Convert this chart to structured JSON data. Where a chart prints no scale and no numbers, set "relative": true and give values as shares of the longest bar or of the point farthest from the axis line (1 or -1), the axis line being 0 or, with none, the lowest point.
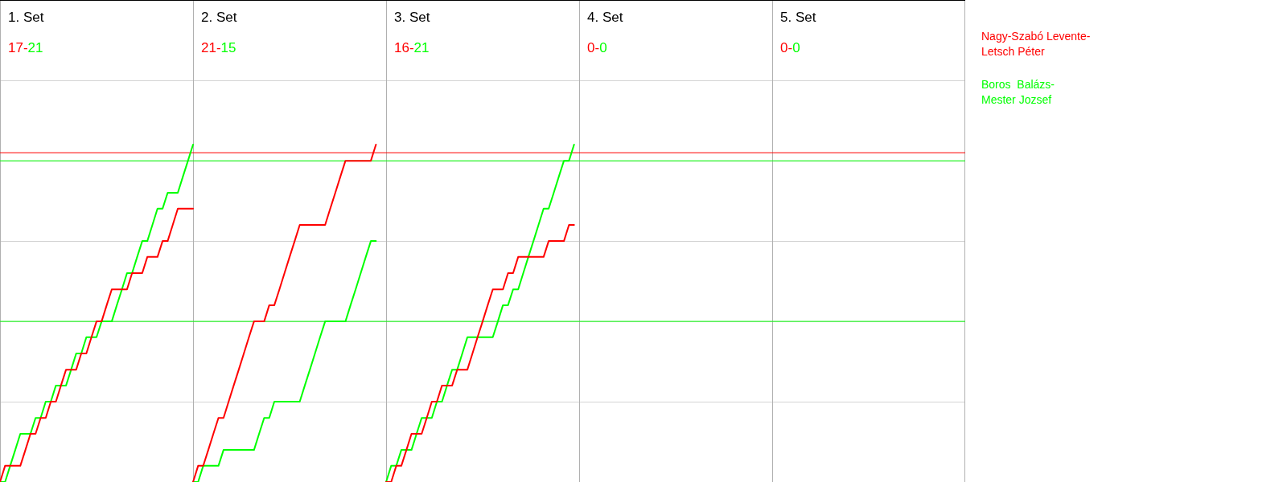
{
  "chart_data": {
    "type": "line",
    "annotations": [
      "1. Set",
      "17-",
      "21",
      "2. Set",
      "21-",
      "15",
      "3. Set",
      "16-",
      "21",
      "4. Set",
      "0-",
      "0",
      "5. Set",
      "0-",
      "0"
    ],
    "relative": true,
    "grid": true,
    "marker": "none",
    "legend": "right",
    "categories": [
      null,
      null,
      null,
      null,
      null,
      null,
      null,
      null,
      null,
      null,
      null,
      null,
      null,
      null,
      null,
      null,
      null,
      null,
      null,
      null,
      null,
      null,
      null,
      null,
      null,
      null,
      null,
      null,
      null,
      null,
      null,
      null,
      null,
      null,
      null,
      null,
      null,
      null,
      null,
      null,
      null,
      null,
      null,
      null,
      null,
      null,
      null,
      null,
      null,
      null,
      null,
      null,
      null,
      null,
      null,
      null,
      null,
      null,
      null,
      null,
      null,
      null,
      null,
      null,
      null,
      null,
      null,
      null,
      null,
      null,
      null,
      null,
      null,
      null,
      null,
      null,
      null,
      null,
      null,
      null,
      null,
      null,
      null,
      null,
      null,
      null,
      null,
      null,
      null,
      null,
      null,
      null,
      null,
      null,
      null,
      null,
      null,
      null,
      null,
      null,
      null,
      null,
      null,
      null,
      null,
      null,
      null,
      null,
      null,
      null,
      null,
      null,
      null,
      null,
      null,
      null,
      null,
      null,
      null,
      null,
      null,
      null,
      null,
      null,
      null,
      null,
      null,
      null,
      null,
      null,
      null,
      null,
      null,
      null,
      null,
      null,
      null,
      null,
      null,
      null,
      null,
      null,
      null,
      null,
      null,
      null,
      null,
      null,
      null,
      null,
      null,
      null,
      null,
      null,
      null,
      null,
      null,
      null,
      null,
      null,
      null,
      null,
      null,
      null,
      null,
      null,
      null,
      null,
      null,
      null,
      null,
      null,
      null,
      null,
      null,
      null,
      null,
      null,
      null,
      null,
      null,
      null,
      null,
      null,
      null,
      null,
      null,
      null,
      null,
      null,
      null
    ],
    "series": [
      {
        "name": "Nagy-Szabó Levente-\nLetsch Péter",
        "color": "#ff0000",
        "values": [
          0,
          0.048,
          0.048,
          0.048,
          0.048,
          0.095,
          0.143,
          0.143,
          0.19,
          0.19,
          0.238,
          0.238,
          0.286,
          0.333,
          0.333,
          0.333,
          0.381,
          0.381,
          0.429,
          0.476,
          0.476,
          0.524,
          0.571,
          0.571,
          0.571,
          0.571,
          0.619,
          0.619,
          0.619,
          0.667,
          0.667,
          0.667,
          0.714,
          0.714,
          0.762,
          0.81,
          0.81,
          0.81,
          0.81,
          null,
          null,
          null,
          null,
          null,
          null,
          null,
          null,
          null,
          null,
          null,
          null,
          null,
          null,
          null,
          null,
          null,
          null,
          null,
          null,
          null,
          null,
          null,
          null,
          null,
          null,
          null,
          null,
          null,
          null,
          null,
          null,
          null,
          null,
          null,
          null,
          null,
          null,
          null,
          null,
          null,
          null,
          null,
          null,
          null,
          null,
          null,
          null,
          null,
          null,
          null,
          null,
          null,
          null,
          null,
          null,
          null,
          null,
          null,
          null,
          null,
          null,
          null,
          null,
          null,
          null,
          null,
          null,
          null,
          null,
          null,
          null,
          null,
          null,
          null,
          null,
          null,
          null,
          null,
          null,
          null,
          null,
          null,
          null,
          null,
          null,
          null,
          null,
          null,
          null,
          null,
          null,
          null,
          null,
          null,
          null,
          null,
          null,
          null,
          null,
          null,
          null,
          null,
          null,
          null,
          null,
          null,
          null,
          null,
          null,
          null,
          null,
          null,
          null,
          null,
          null,
          null,
          null,
          null,
          null,
          null,
          null,
          null,
          null,
          null,
          null,
          null,
          null,
          null,
          null,
          null,
          null,
          null,
          null,
          null,
          null,
          null,
          null,
          null,
          null,
          null,
          null,
          null,
          null,
          null,
          null,
          null,
          null,
          null,
          null,
          null,
          null
        ]
      },
      {
        "name": "Boros  Balázs-\nMester Jozsef",
        "color": "#00ff00",
        "values": [
          0,
          0,
          0.048,
          0.095,
          0.143,
          0.143,
          0.143,
          0.19,
          0.19,
          0.238,
          0.238,
          0.286,
          0.286,
          0.286,
          0.333,
          0.381,
          0.381,
          0.429,
          0.429,
          0.429,
          0.476,
          0.476,
          0.476,
          0.524,
          0.571,
          0.619,
          0.619,
          0.667,
          0.714,
          0.714,
          0.762,
          0.81,
          0.81,
          0.857,
          0.857,
          0.857,
          0.905,
          0.952,
          1,
          null,
          null,
          null,
          null,
          null,
          null,
          null,
          null,
          null,
          null,
          null,
          null,
          null,
          null,
          null,
          null,
          null,
          null,
          null,
          null,
          null,
          null,
          null,
          null,
          null,
          null,
          null,
          null,
          null,
          null,
          null,
          null,
          null,
          null,
          null,
          null,
          null,
          null,
          null,
          null,
          null,
          null,
          null,
          null,
          null,
          null,
          null,
          null,
          null,
          null,
          null,
          null,
          null,
          null,
          null,
          null,
          null,
          null,
          null,
          null,
          null,
          null,
          null,
          null,
          null,
          null,
          null,
          null,
          null,
          null,
          null,
          null,
          null,
          null,
          null,
          null,
          null,
          null,
          null,
          null,
          null,
          null,
          null,
          null,
          null,
          null,
          null,
          null,
          null,
          null,
          null,
          null,
          null,
          null,
          null,
          null,
          null,
          null,
          null,
          null,
          null,
          null,
          null,
          null,
          null,
          null,
          null,
          null,
          null,
          null,
          null,
          null,
          null,
          null,
          null,
          null,
          null,
          null,
          null,
          null,
          null,
          null,
          null,
          null,
          null,
          null,
          null,
          null,
          null,
          null,
          null,
          null,
          null,
          null,
          null,
          null,
          null,
          null,
          null,
          null,
          null,
          null,
          null,
          null,
          null,
          null,
          null,
          null,
          null,
          null,
          null,
          null
        ]
      },
      {
        "color": "#ff0000",
        "values": [
          null,
          null,
          null,
          null,
          null,
          null,
          null,
          null,
          null,
          null,
          null,
          null,
          null,
          null,
          null,
          null,
          null,
          null,
          null,
          null,
          null,
          null,
          null,
          null,
          null,
          null,
          null,
          null,
          null,
          null,
          null,
          null,
          null,
          null,
          null,
          null,
          null,
          null,
          0,
          0.048,
          0.048,
          0.095,
          0.143,
          0.19,
          0.19,
          0.238,
          0.286,
          0.333,
          0.381,
          0.429,
          0.476,
          0.476,
          0.476,
          0.524,
          0.524,
          0.571,
          0.619,
          0.667,
          0.714,
          0.762,
          0.762,
          0.762,
          0.762,
          0.762,
          0.762,
          0.81,
          0.857,
          0.905,
          0.952,
          0.952,
          0.952,
          0.952,
          0.952,
          0.952,
          1,
          null,
          null,
          null,
          null,
          null,
          null,
          null,
          null,
          null,
          null,
          null,
          null,
          null,
          null,
          null,
          null,
          null,
          null,
          null,
          null,
          null,
          null,
          null,
          null,
          null,
          null,
          null,
          null,
          null,
          null,
          null,
          null,
          null,
          null,
          null,
          null,
          null,
          null,
          null,
          null,
          null,
          null,
          null,
          null,
          null,
          null,
          null,
          null,
          null,
          null,
          null,
          null,
          null,
          null,
          null,
          null,
          null,
          null,
          null,
          null,
          null,
          null,
          null,
          null,
          null,
          null,
          null,
          null,
          null,
          null,
          null,
          null,
          null,
          null,
          null,
          null,
          null,
          null,
          null,
          null,
          null,
          null,
          null,
          null,
          null,
          null,
          null,
          null,
          null,
          null,
          null,
          null,
          null,
          null,
          null,
          null,
          null,
          null,
          null,
          null,
          null,
          null,
          null,
          null,
          null,
          null,
          null,
          null,
          null,
          null,
          null,
          null,
          null,
          null,
          null,
          null
        ]
      },
      {
        "color": "#00ff00",
        "values": [
          null,
          null,
          null,
          null,
          null,
          null,
          null,
          null,
          null,
          null,
          null,
          null,
          null,
          null,
          null,
          null,
          null,
          null,
          null,
          null,
          null,
          null,
          null,
          null,
          null,
          null,
          null,
          null,
          null,
          null,
          null,
          null,
          null,
          null,
          null,
          null,
          null,
          null,
          0,
          0,
          0.048,
          0.048,
          0.048,
          0.048,
          0.095,
          0.095,
          0.095,
          0.095,
          0.095,
          0.095,
          0.095,
          0.143,
          0.19,
          0.19,
          0.238,
          0.238,
          0.238,
          0.238,
          0.238,
          0.238,
          0.286,
          0.333,
          0.381,
          0.429,
          0.476,
          0.476,
          0.476,
          0.476,
          0.476,
          0.524,
          0.571,
          0.619,
          0.667,
          0.714,
          0.714,
          null,
          null,
          null,
          null,
          null,
          null,
          null,
          null,
          null,
          null,
          null,
          null,
          null,
          null,
          null,
          null,
          null,
          null,
          null,
          null,
          null,
          null,
          null,
          null,
          null,
          null,
          null,
          null,
          null,
          null,
          null,
          null,
          null,
          null,
          null,
          null,
          null,
          null,
          null,
          null,
          null,
          null,
          null,
          null,
          null,
          null,
          null,
          null,
          null,
          null,
          null,
          null,
          null,
          null,
          null,
          null,
          null,
          null,
          null,
          null,
          null,
          null,
          null,
          null,
          null,
          null,
          null,
          null,
          null,
          null,
          null,
          null,
          null,
          null,
          null,
          null,
          null,
          null,
          null,
          null,
          null,
          null,
          null,
          null,
          null,
          null,
          null,
          null,
          null,
          null,
          null,
          null,
          null,
          null,
          null,
          null,
          null,
          null,
          null,
          null,
          null,
          null,
          null,
          null,
          null,
          null,
          null,
          null,
          null,
          null,
          null,
          null,
          null,
          null,
          null,
          null
        ]
      },
      {
        "color": "#ff0000",
        "values": [
          null,
          null,
          null,
          null,
          null,
          null,
          null,
          null,
          null,
          null,
          null,
          null,
          null,
          null,
          null,
          null,
          null,
          null,
          null,
          null,
          null,
          null,
          null,
          null,
          null,
          null,
          null,
          null,
          null,
          null,
          null,
          null,
          null,
          null,
          null,
          null,
          null,
          null,
          null,
          null,
          null,
          null,
          null,
          null,
          null,
          null,
          null,
          null,
          null,
          null,
          null,
          null,
          null,
          null,
          null,
          null,
          null,
          null,
          null,
          null,
          null,
          null,
          null,
          null,
          null,
          null,
          null,
          null,
          null,
          null,
          null,
          null,
          null,
          null,
          null,
          null,
          0,
          0,
          0.048,
          0.048,
          0.095,
          0.143,
          0.143,
          0.143,
          0.19,
          0.238,
          0.238,
          0.286,
          0.286,
          0.286,
          0.333,
          0.333,
          0.333,
          0.381,
          0.429,
          0.476,
          0.524,
          0.571,
          0.571,
          0.571,
          0.619,
          0.619,
          0.667,
          0.667,
          0.667,
          0.667,
          0.667,
          0.667,
          0.714,
          0.714,
          0.714,
          0.714,
          0.762,
          0.762,
          null,
          null,
          null,
          null,
          null,
          null,
          null,
          null,
          null,
          null,
          null,
          null,
          null,
          null,
          null,
          null,
          null,
          null,
          null,
          null,
          null,
          null,
          null,
          null,
          null,
          null,
          null,
          null,
          null,
          null,
          null,
          null,
          null,
          null,
          null,
          null,
          null,
          null,
          null,
          null,
          null,
          null,
          null,
          null,
          null,
          null,
          null,
          null,
          null,
          null,
          null,
          null,
          null,
          null,
          null,
          null,
          null,
          null,
          null,
          null,
          null,
          null,
          null,
          null,
          null,
          null,
          null,
          null,
          null,
          null,
          null,
          null,
          null,
          null,
          null,
          null,
          null
        ]
      },
      {
        "color": "#00ff00",
        "values": [
          null,
          null,
          null,
          null,
          null,
          null,
          null,
          null,
          null,
          null,
          null,
          null,
          null,
          null,
          null,
          null,
          null,
          null,
          null,
          null,
          null,
          null,
          null,
          null,
          null,
          null,
          null,
          null,
          null,
          null,
          null,
          null,
          null,
          null,
          null,
          null,
          null,
          null,
          null,
          null,
          null,
          null,
          null,
          null,
          null,
          null,
          null,
          null,
          null,
          null,
          null,
          null,
          null,
          null,
          null,
          null,
          null,
          null,
          null,
          null,
          null,
          null,
          null,
          null,
          null,
          null,
          null,
          null,
          null,
          null,
          null,
          null,
          null,
          null,
          null,
          null,
          0,
          0.048,
          0.048,
          0.095,
          0.095,
          0.095,
          0.143,
          0.19,
          0.19,
          0.19,
          0.238,
          0.238,
          0.286,
          0.333,
          0.333,
          0.381,
          0.429,
          0.429,
          0.429,
          0.429,
          0.429,
          0.429,
          0.476,
          0.524,
          0.524,
          0.571,
          0.571,
          0.619,
          0.667,
          0.714,
          0.762,
          0.81,
          0.81,
          0.857,
          0.905,
          0.952,
          0.952,
          1,
          null,
          null,
          null,
          null,
          null,
          null,
          null,
          null,
          null,
          null,
          null,
          null,
          null,
          null,
          null,
          null,
          null,
          null,
          null,
          null,
          null,
          null,
          null,
          null,
          null,
          null,
          null,
          null,
          null,
          null,
          null,
          null,
          null,
          null,
          null,
          null,
          null,
          null,
          null,
          null,
          null,
          null,
          null,
          null,
          null,
          null,
          null,
          null,
          null,
          null,
          null,
          null,
          null,
          null,
          null,
          null,
          null,
          null,
          null,
          null,
          null,
          null,
          null,
          null,
          null,
          null,
          null,
          null,
          null,
          null,
          null,
          null,
          null,
          null,
          null,
          null,
          null
        ]
      }
    ],
    "ref_lines": [
      {
        "axis": "y",
        "value": 0.976,
        "color": "#ff0000"
      },
      {
        "axis": "y",
        "value": 0.952,
        "color": "#00ff00"
      },
      {
        "axis": "y",
        "value": 0.476,
        "color": "#00ff00"
      }
    ]
  }
}
